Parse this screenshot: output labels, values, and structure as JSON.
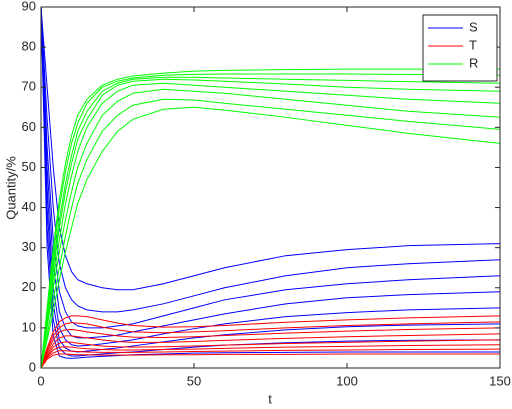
{
  "chart_data": {
    "type": "line",
    "xlabel": "t",
    "ylabel": "Quantity/%",
    "xlim": [
      0,
      150
    ],
    "ylim": [
      0,
      90
    ],
    "xticks": [
      0,
      50,
      100,
      150
    ],
    "yticks": [
      0,
      10,
      20,
      30,
      40,
      50,
      60,
      70,
      80,
      90
    ],
    "legend": "top-right",
    "x": [
      0,
      2,
      4,
      6,
      8,
      10,
      12,
      15,
      20,
      25,
      30,
      40,
      50,
      60,
      80,
      100,
      120,
      150
    ],
    "series": [
      {
        "name": "S",
        "color": "#0000ff",
        "curves": [
          [
            90,
            70,
            50,
            35,
            28,
            24,
            22,
            21,
            20,
            19.5,
            19.5,
            21,
            23,
            25,
            28,
            29.5,
            30.5,
            31
          ],
          [
            90,
            62,
            40,
            26,
            20,
            17,
            15.5,
            14.5,
            14,
            14,
            14.5,
            16,
            18,
            20,
            23,
            25,
            26,
            27
          ],
          [
            90,
            55,
            32,
            19,
            14,
            11.5,
            10.5,
            10,
            10,
            10.5,
            11,
            13,
            15,
            17,
            19.5,
            21,
            22,
            23
          ],
          [
            90,
            50,
            26,
            14,
            10,
            8,
            7.5,
            7.5,
            7.8,
            8.2,
            9,
            10.5,
            12,
            13.5,
            16,
            17.5,
            18.3,
            19
          ],
          [
            90,
            45,
            20,
            10,
            7,
            5.8,
            5.5,
            5.6,
            6,
            6.5,
            7,
            8.5,
            9.8,
            11,
            12.8,
            13.8,
            14.5,
            15
          ],
          [
            90,
            40,
            16,
            7,
            5,
            4.2,
            4,
            4.2,
            4.6,
            5,
            5.5,
            6.5,
            7.5,
            8.3,
            9.5,
            10.3,
            10.7,
            11
          ],
          [
            90,
            35,
            12,
            5,
            3.5,
            3,
            3,
            3.2,
            3.5,
            3.8,
            4,
            4.6,
            5.2,
            5.7,
            6.3,
            6.7,
            6.9,
            7
          ],
          [
            90,
            30,
            8,
            3,
            2.5,
            2.4,
            2.5,
            2.7,
            2.9,
            3.1,
            3.3,
            3.5,
            3.7,
            3.8,
            3.9,
            4,
            4,
            4
          ]
        ]
      },
      {
        "name": "T",
        "color": "#ff0000",
        "curves": [
          [
            0,
            5,
            9,
            11.5,
            12.5,
            13,
            13,
            12.8,
            12,
            11.2,
            10.6,
            10.2,
            10.3,
            10.6,
            11.4,
            12,
            12.5,
            13
          ],
          [
            0,
            4.5,
            8,
            10,
            11,
            11.3,
            11.2,
            11,
            10.2,
            9.5,
            9,
            8.8,
            9,
            9.3,
            10,
            10.6,
            11,
            11.5
          ],
          [
            0,
            4,
            7,
            9,
            9.5,
            9.6,
            9.4,
            9,
            8.5,
            8,
            7.7,
            7.6,
            7.8,
            8.1,
            8.7,
            9.2,
            9.6,
            10
          ],
          [
            0,
            3.5,
            6,
            7.5,
            8,
            8,
            7.8,
            7.5,
            7,
            6.6,
            6.4,
            6.4,
            6.6,
            6.9,
            7.4,
            7.8,
            8.1,
            8.5
          ],
          [
            0,
            3,
            5.2,
            6.2,
            6.5,
            6.4,
            6.2,
            5.9,
            5.5,
            5.3,
            5.2,
            5.3,
            5.5,
            5.7,
            6.1,
            6.4,
            6.7,
            7
          ],
          [
            0,
            2.8,
            4.5,
            5.2,
            5.3,
            5.2,
            5,
            4.8,
            4.6,
            4.5,
            4.5,
            4.6,
            4.7,
            4.9,
            5.2,
            5.4,
            5.6,
            5.8
          ],
          [
            0,
            2.5,
            3.8,
            4.3,
            4.3,
            4.2,
            4.1,
            4,
            3.9,
            3.9,
            3.9,
            4,
            4.1,
            4.2,
            4.4,
            4.5,
            4.6,
            4.7
          ],
          [
            0,
            2.2,
            3.2,
            3.5,
            3.5,
            3.4,
            3.3,
            3.3,
            3.2,
            3.2,
            3.2,
            3.3,
            3.3,
            3.4,
            3.4,
            3.5,
            3.5,
            3.5
          ]
        ]
      },
      {
        "name": "R",
        "color": "#00ff00",
        "curves": [
          [
            0,
            15,
            30,
            42,
            51,
            58,
            63,
            67,
            70.5,
            72,
            72.8,
            73.5,
            74,
            74.2,
            74.4,
            74.5,
            74.5,
            74.5
          ],
          [
            0,
            14,
            28,
            40,
            49,
            56,
            61,
            66,
            70,
            71.5,
            72.3,
            73,
            73.2,
            73.3,
            73.3,
            73.3,
            73.2,
            73
          ],
          [
            0,
            13,
            26,
            37,
            46,
            53,
            59,
            64,
            69,
            71,
            72,
            72.5,
            72.5,
            72.3,
            72,
            71.7,
            71.4,
            71
          ],
          [
            0,
            12,
            24,
            35,
            44,
            51,
            57,
            62,
            68,
            70.5,
            71.5,
            72,
            71.8,
            71.5,
            70.8,
            70,
            69.5,
            69
          ],
          [
            0,
            11,
            22,
            32,
            41,
            48,
            54,
            60,
            66,
            69,
            70.5,
            71,
            70.5,
            70,
            69,
            68,
            67,
            66
          ],
          [
            0,
            10,
            20,
            29,
            37,
            44,
            50,
            56,
            63,
            66.5,
            68.5,
            69.5,
            69,
            68.5,
            67,
            65.5,
            64,
            62.5
          ],
          [
            0,
            8,
            17,
            25,
            33,
            40,
            46,
            52,
            59,
            63,
            65.5,
            67,
            66.8,
            66,
            64.5,
            63,
            61.5,
            59.5
          ],
          [
            0,
            7,
            14,
            22,
            29,
            35,
            41,
            47,
            54,
            59,
            62,
            64.5,
            65,
            64.3,
            62.5,
            60.5,
            58.5,
            56
          ]
        ]
      }
    ]
  }
}
